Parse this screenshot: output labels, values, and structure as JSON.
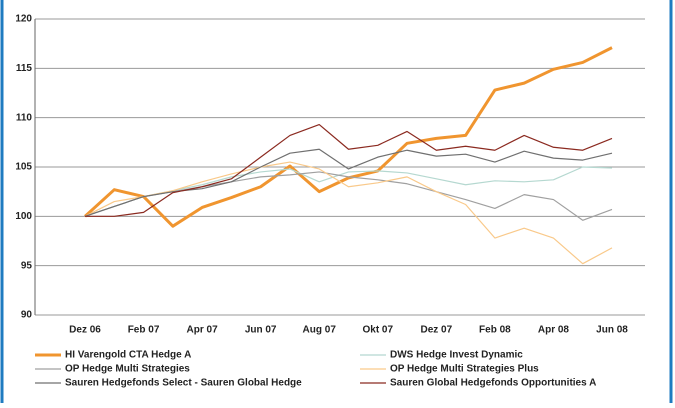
{
  "chart_data": {
    "type": "line",
    "categories": [
      "Dez 06",
      null,
      "Feb 07",
      null,
      "Apr 07",
      null,
      "Jun 07",
      null,
      "Aug 07",
      null,
      "Okt 07",
      null,
      "Dez 07",
      null,
      "Feb 08",
      null,
      "Apr 08",
      null,
      "Jun 08"
    ],
    "series": [
      {
        "name": "HI Varengold CTA Hedge A",
        "color": "#f0952f",
        "line_width": 3,
        "values": [
          100,
          102.7,
          102.0,
          99.0,
          100.9,
          101.9,
          103.0,
          105.1,
          102.5,
          103.9,
          104.6,
          107.4,
          107.9,
          108.2,
          112.8,
          113.5,
          114.9,
          115.6,
          117.1
        ]
      },
      {
        "name": "DWS Hedge Invest Dynamic",
        "color": "#b5d8d0",
        "line_width": 1.2,
        "values": [
          100,
          101.0,
          102.0,
          102.6,
          103.2,
          104.0,
          104.5,
          104.8,
          103.5,
          104.5,
          104.6,
          104.4,
          103.8,
          103.2,
          103.6,
          103.5,
          103.7,
          105.0,
          104.9
        ]
      },
      {
        "name": "OP Hedge Multi Strategies",
        "color": "#a0a0a0",
        "line_width": 1.2,
        "values": [
          100,
          101.0,
          102.0,
          102.5,
          103.0,
          103.5,
          104.0,
          104.2,
          104.5,
          104.0,
          103.7,
          103.3,
          102.5,
          101.7,
          100.8,
          102.2,
          101.7,
          99.6,
          100.7
        ]
      },
      {
        "name": "OP Hedge Multi Strategies Plus",
        "color": "#f9c98a",
        "line_width": 1.2,
        "values": [
          100,
          101.5,
          102.0,
          102.6,
          103.5,
          104.3,
          105.0,
          105.5,
          104.8,
          103.0,
          103.4,
          104.0,
          102.5,
          101.2,
          97.8,
          98.8,
          97.8,
          95.2,
          96.8
        ]
      },
      {
        "name": "Sauren Hedgefonds Select - Sauren Global Hedge",
        "color": "#707070",
        "line_width": 1.2,
        "values": [
          100,
          101.0,
          102.0,
          102.5,
          102.8,
          103.5,
          105.0,
          106.4,
          106.8,
          104.8,
          106.0,
          106.7,
          106.1,
          106.3,
          105.5,
          106.6,
          105.9,
          105.7,
          106.4
        ]
      },
      {
        "name": "Sauren Global Hedgefonds Opportunities A",
        "color": "#8b2a20",
        "line_width": 1.2,
        "values": [
          100,
          100.0,
          100.4,
          102.4,
          103.0,
          103.8,
          106.0,
          108.2,
          109.3,
          106.8,
          107.2,
          108.6,
          106.7,
          107.1,
          106.7,
          108.2,
          107.0,
          106.7,
          107.9
        ]
      }
    ],
    "ylim": [
      90,
      120
    ],
    "yticks": [
      90,
      95,
      100,
      105,
      110,
      115,
      120
    ],
    "grid": true,
    "legend_position": "bottom"
  }
}
